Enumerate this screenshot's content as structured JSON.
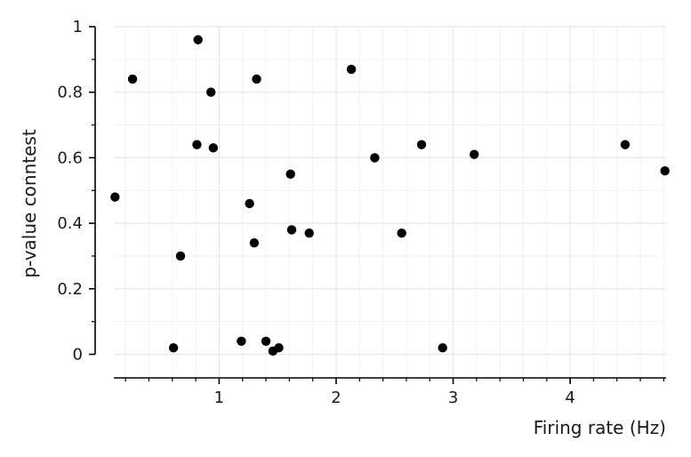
{
  "chart_data": {
    "type": "scatter",
    "xlabel": "Firing rate (Hz)",
    "ylabel": "p-value conntest",
    "xlim": [
      0.1,
      4.82
    ],
    "ylim": [
      -0.08,
      1.0
    ],
    "x_ticks": [
      1,
      2,
      3,
      4
    ],
    "x_tick_labels": [
      "1",
      "2",
      "3",
      "4"
    ],
    "y_ticks": [
      0,
      0.2,
      0.4,
      0.6,
      0.8,
      1.0
    ],
    "y_tick_labels": [
      "0",
      "0.2",
      "0.4",
      "0.6",
      "0.8",
      "1"
    ],
    "grid": true,
    "point_color": "#000000",
    "grid_major_color": "#e6e6e6",
    "grid_minor_color": "#f2f2f2",
    "points": [
      {
        "x": 0.11,
        "y": 0.48
      },
      {
        "x": 0.26,
        "y": 0.84
      },
      {
        "x": 0.61,
        "y": 0.02
      },
      {
        "x": 0.67,
        "y": 0.3
      },
      {
        "x": 0.81,
        "y": 0.64
      },
      {
        "x": 0.82,
        "y": 0.96
      },
      {
        "x": 0.93,
        "y": 0.8
      },
      {
        "x": 0.95,
        "y": 0.63
      },
      {
        "x": 1.19,
        "y": 0.04
      },
      {
        "x": 1.26,
        "y": 0.46
      },
      {
        "x": 1.3,
        "y": 0.34
      },
      {
        "x": 1.32,
        "y": 0.84
      },
      {
        "x": 1.4,
        "y": 0.04
      },
      {
        "x": 1.46,
        "y": 0.01
      },
      {
        "x": 1.51,
        "y": 0.02
      },
      {
        "x": 1.61,
        "y": 0.55
      },
      {
        "x": 1.62,
        "y": 0.38
      },
      {
        "x": 1.77,
        "y": 0.37
      },
      {
        "x": 2.13,
        "y": 0.87
      },
      {
        "x": 2.33,
        "y": 0.6
      },
      {
        "x": 2.56,
        "y": 0.37
      },
      {
        "x": 2.73,
        "y": 0.64
      },
      {
        "x": 2.91,
        "y": 0.02
      },
      {
        "x": 3.18,
        "y": 0.61
      },
      {
        "x": 4.47,
        "y": 0.64
      },
      {
        "x": 4.81,
        "y": 0.56
      }
    ]
  }
}
